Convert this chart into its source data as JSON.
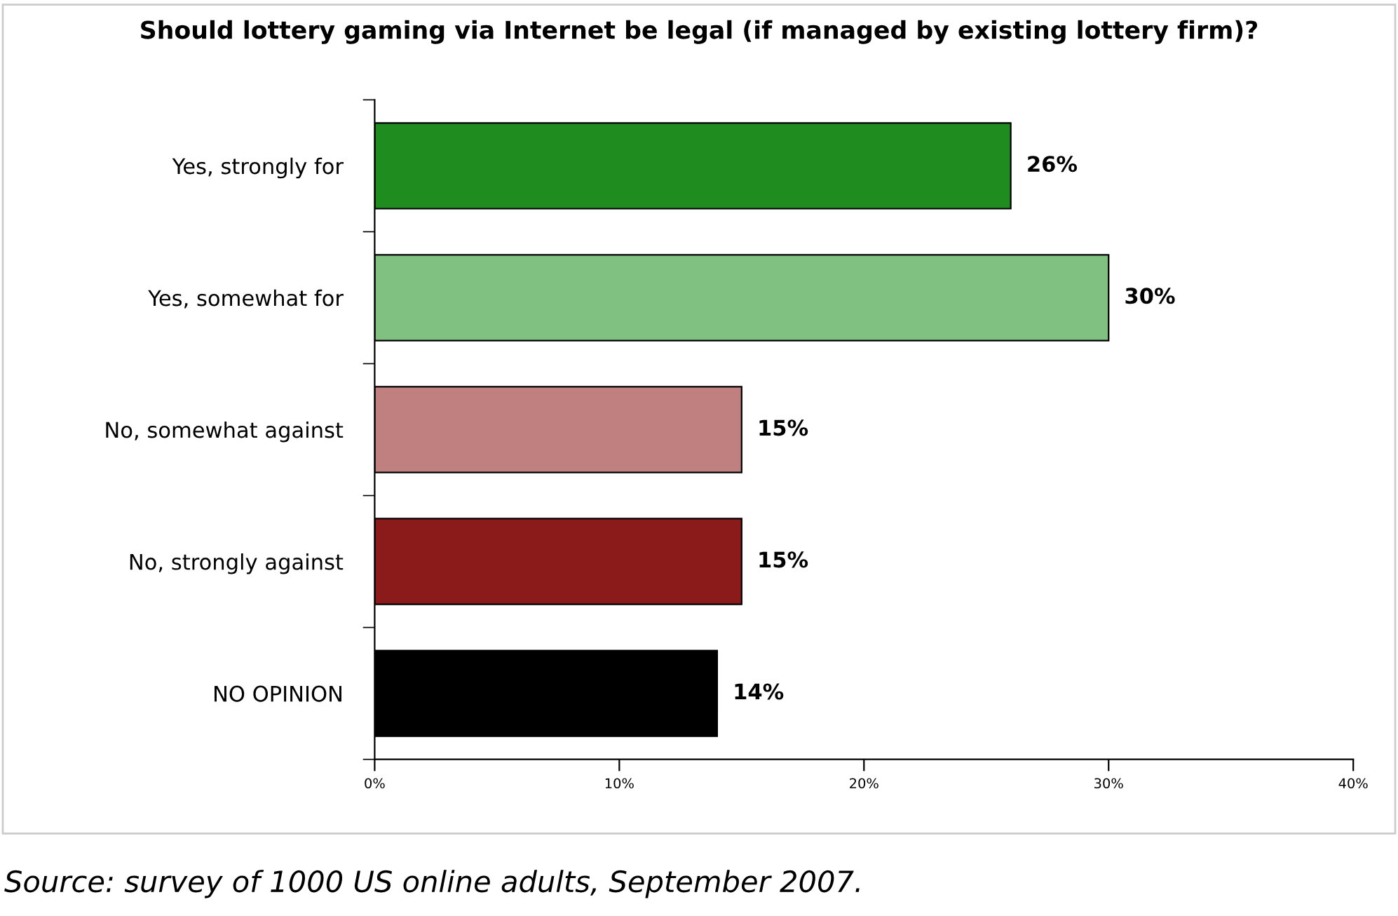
{
  "chart_data": {
    "type": "bar",
    "orientation": "horizontal",
    "title": "Should lottery gaming via Internet be legal (if managed by existing lottery firm)?",
    "categories": [
      "Yes, strongly for",
      "Yes, somewhat for",
      "No, somewhat against",
      "No, strongly against",
      "NO OPINION"
    ],
    "values": [
      26,
      30,
      15,
      15,
      14
    ],
    "colors": [
      "#1e8c1e",
      "#80c080",
      "#c08080",
      "#8b1a1a",
      "#000000"
    ],
    "value_labels": [
      "26%",
      "30%",
      "15%",
      "15%",
      "14%"
    ],
    "xlim": [
      0,
      40
    ],
    "xticks": [
      {
        "value": 0,
        "label": "0%"
      },
      {
        "value": 10,
        "label": "10%"
      },
      {
        "value": 20,
        "label": "20%"
      },
      {
        "value": 30,
        "label": "30%"
      },
      {
        "value": 40,
        "label": "40%"
      }
    ],
    "grid": false,
    "annotations": [
      "Source: survey of 1000 US online adults, September 2007."
    ]
  }
}
